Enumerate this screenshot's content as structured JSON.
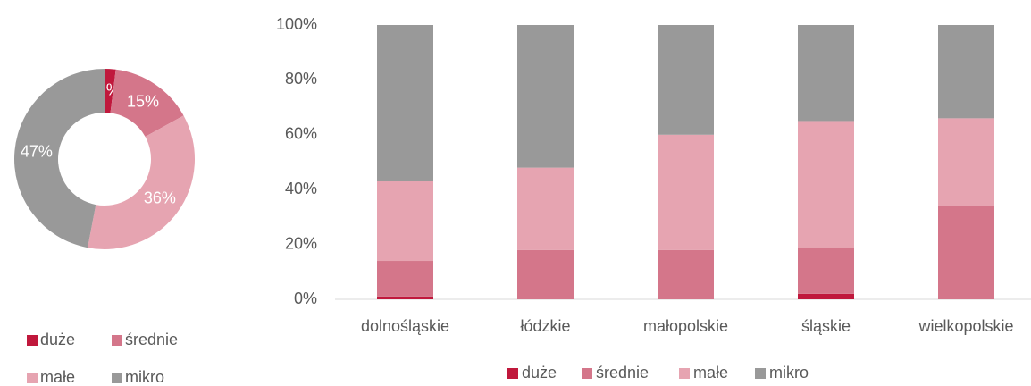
{
  "chart_data": [
    {
      "type": "donut",
      "categories": [
        "duże",
        "średnie",
        "małe",
        "mikro"
      ],
      "values": [
        2,
        15,
        36,
        47
      ],
      "value_labels": [
        "2%",
        "15%",
        "36%",
        "47%"
      ],
      "colors": [
        "#c0183c",
        "#d4768a",
        "#e6a4b1",
        "#999999"
      ]
    },
    {
      "type": "stacked_bar",
      "categories": [
        "dolnośląskie",
        "łódzkie",
        "małopolskie",
        "śląskie",
        "wielkopolskie"
      ],
      "series": [
        {
          "name": "duże",
          "color": "#c0183c",
          "values": [
            1,
            0,
            0,
            2,
            0
          ]
        },
        {
          "name": "średnie",
          "color": "#d4768a",
          "values": [
            13,
            18,
            18,
            17,
            34
          ]
        },
        {
          "name": "małe",
          "color": "#e6a4b1",
          "values": [
            29,
            30,
            42,
            46,
            32
          ]
        },
        {
          "name": "mikro",
          "color": "#999999",
          "values": [
            57,
            52,
            40,
            35,
            34
          ]
        }
      ],
      "ylim": [
        0,
        100
      ],
      "yticks": [
        {
          "value": 0,
          "label": "0%"
        },
        {
          "value": 20,
          "label": "20%"
        },
        {
          "value": 40,
          "label": "40%"
        },
        {
          "value": 60,
          "label": "60%"
        },
        {
          "value": 80,
          "label": "80%"
        },
        {
          "value": 100,
          "label": "100%"
        }
      ]
    }
  ]
}
